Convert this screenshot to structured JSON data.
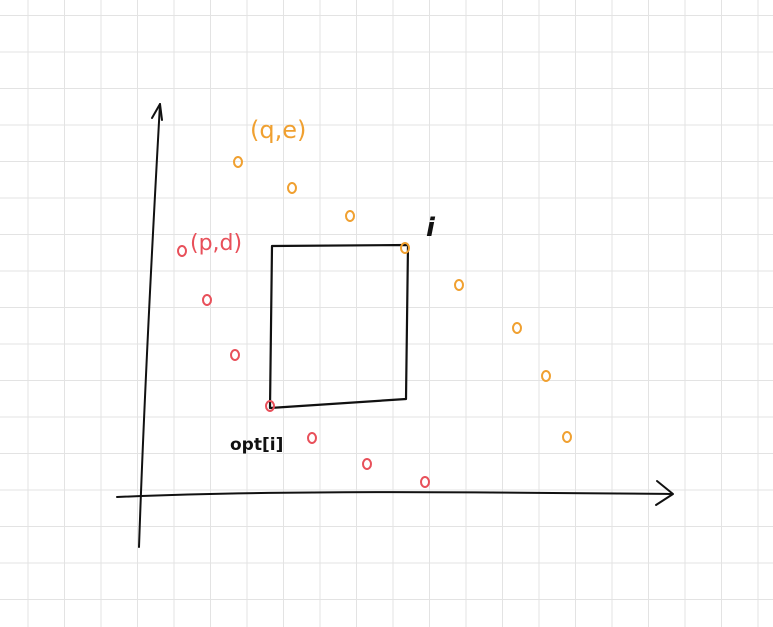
{
  "labels": {
    "orange_pair": "(q,e)",
    "red_pair": "(p,d)",
    "corner": "i",
    "opt": "opt[i]"
  },
  "colors": {
    "orange": "#f0a030",
    "red": "#e8505a",
    "ink": "#111111",
    "grid": "#e3e3e3"
  }
}
